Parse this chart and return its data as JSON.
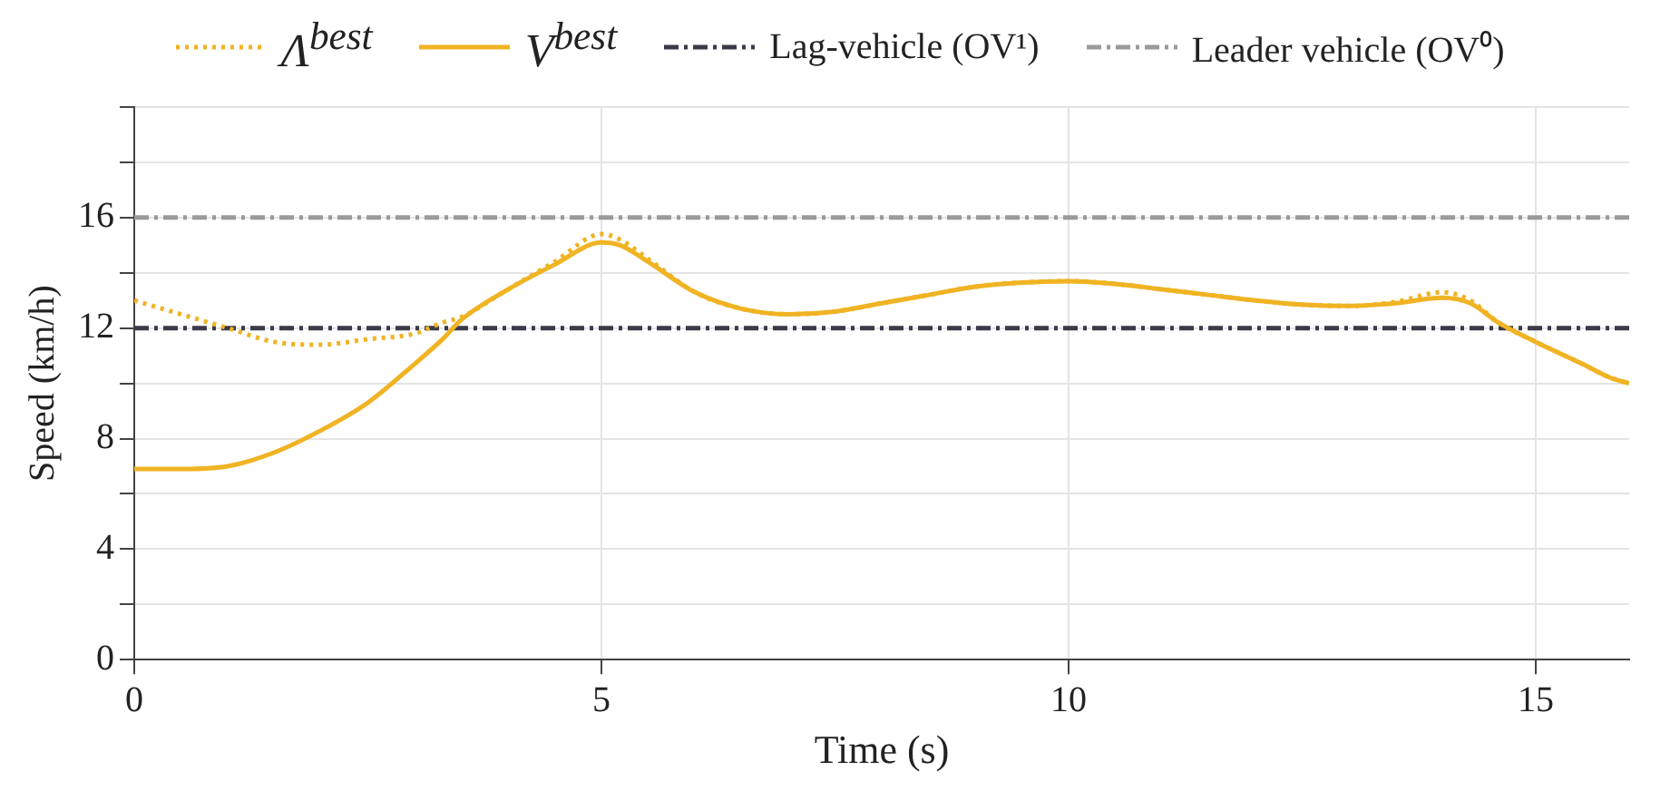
{
  "chart_data": {
    "type": "line",
    "xlabel": "Time (s)",
    "ylabel": "Speed (km/h)",
    "xlim": [
      0,
      16
    ],
    "ylim": [
      0,
      20
    ],
    "xticks": [
      0,
      5,
      10,
      15
    ],
    "yticks": [
      0,
      {
        "value": 2,
        "label": null
      },
      4,
      {
        "value": 6,
        "label": null
      },
      8,
      {
        "value": 10,
        "label": null
      },
      12,
      {
        "value": 14,
        "label": null
      },
      16,
      {
        "value": 18,
        "label": null
      },
      {
        "value": 20,
        "label": null
      }
    ],
    "grid": true,
    "legend": "top",
    "marker": "none",
    "series": [
      {
        "name": "Λ$^{best}$",
        "color": "#f0b323",
        "line_style": "dotted",
        "x": [
          0,
          0.5,
          1,
          1.5,
          2,
          2.5,
          3,
          3.3,
          3.5,
          4,
          4.5,
          5,
          5.2,
          5.5,
          6,
          6.5,
          7,
          7.5,
          8,
          8.5,
          9,
          9.5,
          10,
          10.5,
          11,
          11.5,
          12,
          12.5,
          13,
          13.5,
          14,
          14.3,
          14.6,
          15,
          15.5,
          15.8,
          16
        ],
        "values": [
          13.0,
          12.5,
          12.0,
          11.5,
          11.4,
          11.6,
          11.8,
          12.2,
          12.4,
          13.4,
          14.4,
          15.4,
          15.2,
          14.5,
          13.3,
          12.7,
          12.5,
          12.6,
          12.9,
          13.2,
          13.5,
          13.65,
          13.7,
          13.6,
          13.4,
          13.2,
          13.0,
          12.85,
          12.8,
          12.95,
          13.3,
          13.0,
          12.2,
          11.5,
          10.7,
          10.2,
          10.0
        ]
      },
      {
        "name": "V$^{best}$",
        "color": "#f0b323",
        "line_style": "solid",
        "x": [
          0,
          0.5,
          1,
          1.5,
          2,
          2.5,
          3,
          3.3,
          3.5,
          4,
          4.5,
          5,
          5.2,
          5.5,
          6,
          6.5,
          7,
          7.5,
          8,
          8.5,
          9,
          9.5,
          10,
          10.5,
          11,
          11.5,
          12,
          12.5,
          13,
          13.5,
          14,
          14.3,
          14.6,
          15,
          15.5,
          15.8,
          16
        ],
        "values": [
          6.9,
          6.9,
          7.0,
          7.5,
          8.3,
          9.3,
          10.7,
          11.6,
          12.3,
          13.4,
          14.3,
          15.1,
          15.0,
          14.4,
          13.3,
          12.7,
          12.5,
          12.6,
          12.9,
          13.2,
          13.5,
          13.65,
          13.7,
          13.6,
          13.4,
          13.2,
          13.0,
          12.85,
          12.8,
          12.9,
          13.1,
          12.9,
          12.2,
          11.5,
          10.7,
          10.2,
          10.0
        ]
      },
      {
        "name": "Lag-vehicle (OV¹)",
        "color": "#3a3a48",
        "line_style": "dashed",
        "x": [
          0,
          16
        ],
        "values": [
          12,
          12
        ]
      },
      {
        "name": "Leader vehicle (OV⁰)",
        "color": "#9a9a9a",
        "line_style": "dashed",
        "x": [
          0,
          16
        ],
        "values": [
          16,
          16
        ]
      }
    ]
  }
}
